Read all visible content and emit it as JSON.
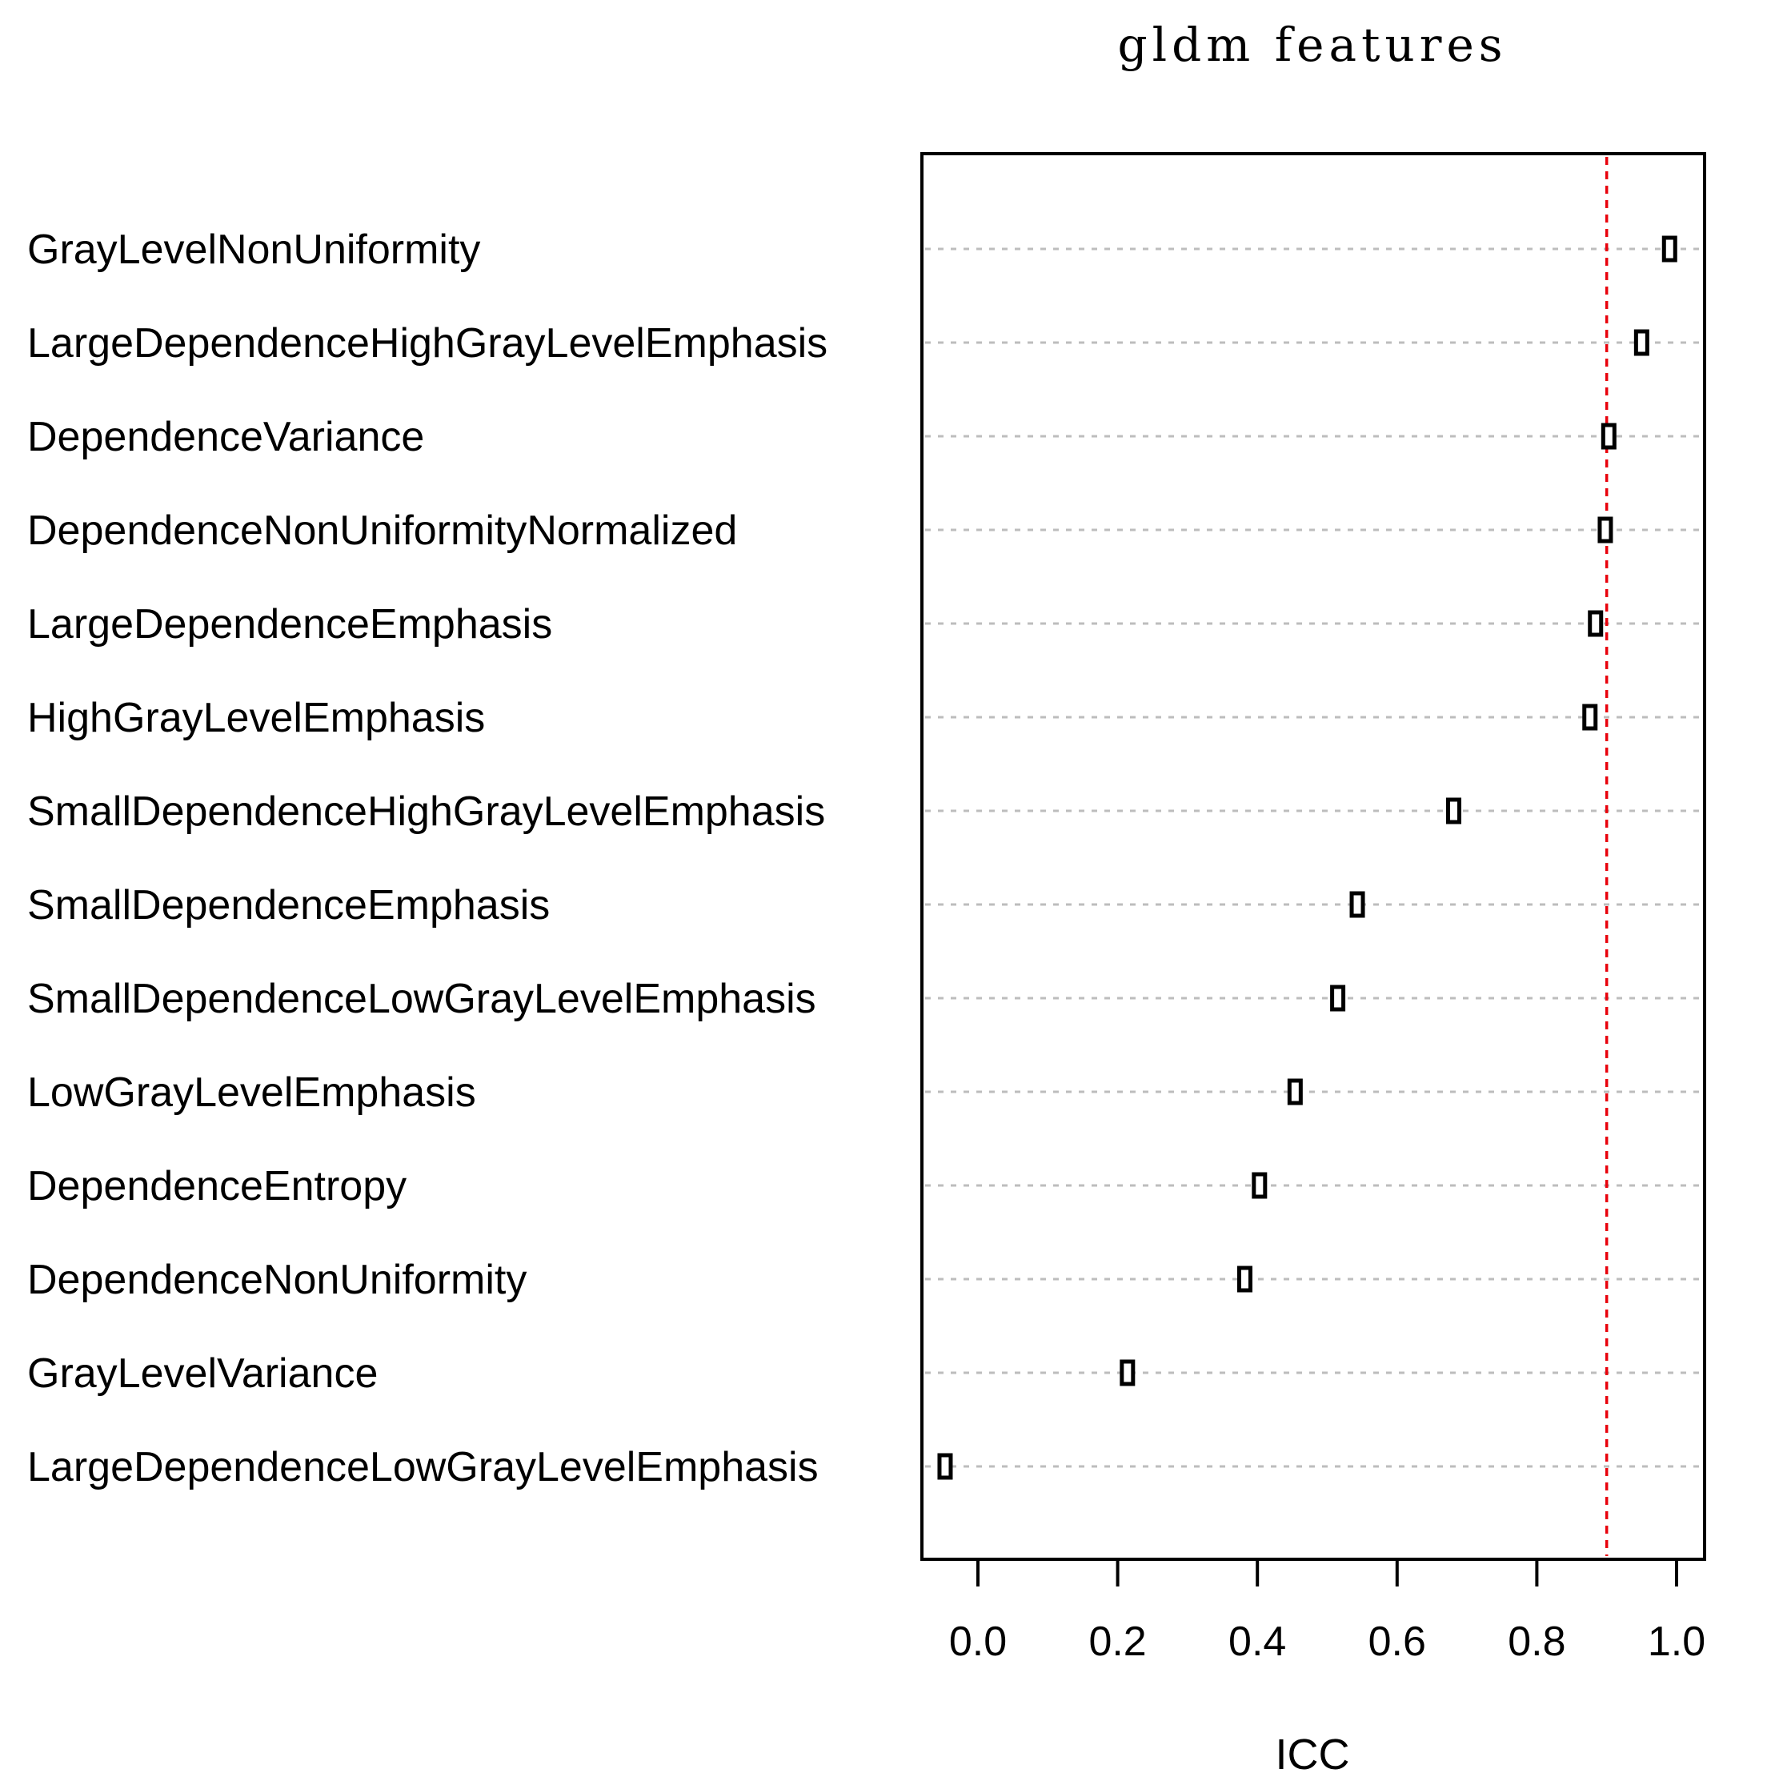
{
  "chart_data": {
    "type": "scatter",
    "title": "gldm features",
    "xlabel": "ICC",
    "ylabel": "",
    "xlim": [
      -0.08,
      1.04
    ],
    "x_ticks": [
      "0.0",
      "0.2",
      "0.4",
      "0.6",
      "0.8",
      "1.0"
    ],
    "reference_line": {
      "x": 0.9,
      "color": "#e8000b",
      "style": "dashed"
    },
    "grid": "horizontal dotted",
    "marker": "open rectangle",
    "categories": [
      "GrayLevelNonUniformity",
      "LargeDependenceHighGrayLevelEmphasis",
      "DependenceVariance",
      "DependenceNonUniformityNormalized",
      "LargeDependenceEmphasis",
      "HighGrayLevelEmphasis",
      "SmallDependenceHighGrayLevelEmphasis",
      "SmallDependenceEmphasis",
      "SmallDependenceLowGrayLevelEmphasis",
      "LowGrayLevelEmphasis",
      "DependenceEntropy",
      "DependenceNonUniformity",
      "GrayLevelVariance",
      "LargeDependenceLowGrayLevelEmphasis"
    ],
    "values": [
      0.99,
      0.95,
      0.903,
      0.898,
      0.884,
      0.876,
      0.681,
      0.543,
      0.515,
      0.454,
      0.403,
      0.382,
      0.214,
      -0.047
    ]
  },
  "colors": {
    "marker": "#000000",
    "grid": "#bdbdbd",
    "reference": "#e8000b",
    "frame": "#000000"
  }
}
